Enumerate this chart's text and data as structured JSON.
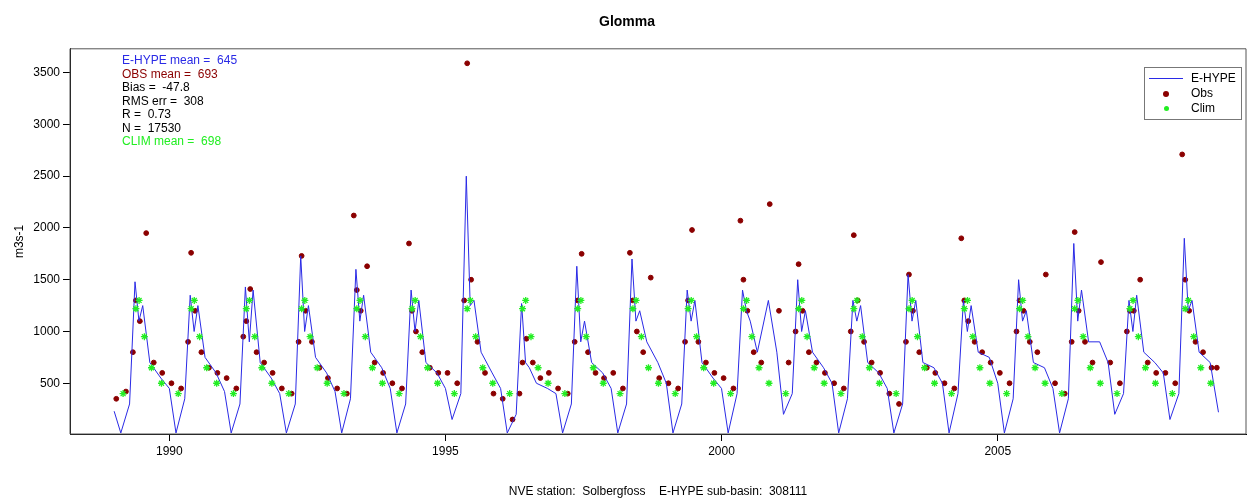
{
  "chart_data": {
    "type": "line",
    "title": "Glomma",
    "ylabel": "m3s-1",
    "xlim": [
      "1988-03-15",
      "2009-07-01"
    ],
    "xticks": [
      "1990",
      "1995",
      "2000",
      "2005"
    ],
    "ylim": [
      10,
      3730
    ],
    "yticks": [
      500,
      1000,
      1500,
      2000,
      2500,
      3000,
      3500
    ],
    "grid": false,
    "legend": "top right",
    "annotations": [
      "E-HYPE mean =  645",
      "OBS mean =  693",
      "Bias =  -47.8",
      "RMS err =  308",
      "R =  0.73",
      "N =  17530",
      "CLIM mean =  698",
      "NVE station:  Solbergfoss    E-HYPE sub-basin:  308111"
    ],
    "series": [
      {
        "name": "E-HYPE",
        "type": "line",
        "marker": "none",
        "color": "#2a2ae6",
        "x": [
          "1989-01-01",
          "1989-02-14",
          "1989-04-13",
          "1989-05-19",
          "1989-06-14",
          "1989-07-09",
          "1989-08-25",
          "1989-11-06",
          "1990-01-01",
          "1990-02-14",
          "1990-04-13",
          "1990-05-19",
          "1990-06-14",
          "1990-07-09",
          "1990-08-25",
          "1990-11-06",
          "1991-01-01",
          "1991-02-14",
          "1991-04-13",
          "1991-05-19",
          "1991-06-14",
          "1991-07-09",
          "1991-08-25",
          "1991-11-06",
          "1992-01-01",
          "1992-02-14",
          "1992-04-13",
          "1992-05-19",
          "1992-06-14",
          "1992-07-09",
          "1992-08-25",
          "1992-11-06",
          "1993-01-01",
          "1993-02-14",
          "1993-04-13",
          "1993-05-19",
          "1993-06-14",
          "1993-07-09",
          "1993-08-25",
          "1993-11-06",
          "1994-01-01",
          "1994-02-14",
          "1994-04-13",
          "1994-05-19",
          "1994-06-14",
          "1994-07-09",
          "1994-08-25",
          "1994-11-06",
          "1995-01-01",
          "1995-02-14",
          "1995-04-13",
          "1995-05-19",
          "1995-06-14",
          "1995-07-09",
          "1995-08-25",
          "1995-11-06",
          "1996-01-01",
          "1996-02-14",
          "1996-04-13",
          "1996-05-19",
          "1996-06-14",
          "1996-07-09",
          "1996-08-25",
          "1996-11-06",
          "1997-01-01",
          "1997-02-14",
          "1997-04-13",
          "1997-05-19",
          "1997-06-14",
          "1997-07-09",
          "1997-08-25",
          "1997-11-06",
          "1998-01-01",
          "1998-02-14",
          "1998-04-13",
          "1998-05-19",
          "1998-06-14",
          "1998-07-09",
          "1998-08-25",
          "1998-11-06",
          "1999-01-01",
          "1999-02-14",
          "1999-04-13",
          "1999-05-19",
          "1999-06-14",
          "1999-07-09",
          "1999-08-25",
          "1999-11-06",
          "2000-01-01",
          "2000-02-14",
          "2000-04-13",
          "2000-05-19",
          "2000-06-14",
          "2000-07-09",
          "2000-08-25",
          "2000-11-06",
          "2001-01-01",
          "2001-02-14",
          "2001-04-13",
          "2001-05-19",
          "2001-06-14",
          "2001-07-09",
          "2001-08-25",
          "2001-11-06",
          "2002-01-01",
          "2002-02-14",
          "2002-04-13",
          "2002-05-19",
          "2002-06-14",
          "2002-07-09",
          "2002-08-25",
          "2002-11-06",
          "2003-01-01",
          "2003-02-14",
          "2003-04-13",
          "2003-05-19",
          "2003-06-14",
          "2003-07-09",
          "2003-08-25",
          "2003-11-06",
          "2004-01-01",
          "2004-02-14",
          "2004-04-13",
          "2004-05-19",
          "2004-06-14",
          "2004-07-09",
          "2004-08-25",
          "2004-11-06",
          "2005-01-01",
          "2005-02-14",
          "2005-04-13",
          "2005-05-19",
          "2005-06-14",
          "2005-07-09",
          "2005-08-25",
          "2005-11-06",
          "2006-01-01",
          "2006-02-14",
          "2006-04-13",
          "2006-05-19",
          "2006-06-14",
          "2006-07-09",
          "2006-08-25",
          "2006-11-06",
          "2007-01-01",
          "2007-02-14",
          "2007-04-13",
          "2007-05-19",
          "2007-06-14",
          "2007-07-09",
          "2007-08-25",
          "2007-11-06",
          "2008-01-01",
          "2008-02-14",
          "2008-04-13",
          "2008-05-19",
          "2008-06-14",
          "2008-07-09",
          "2008-08-25",
          "2008-11-06",
          "2008-12-31"
        ],
        "values": [
          230,
          20,
          300,
          1480,
          1100,
          1250,
          700,
          550,
          450,
          20,
          350,
          1350,
          1000,
          1250,
          750,
          600,
          420,
          20,
          300,
          1430,
          900,
          1400,
          700,
          550,
          400,
          20,
          300,
          1730,
          1000,
          1250,
          750,
          600,
          420,
          20,
          350,
          1600,
          1100,
          1350,
          800,
          650,
          450,
          20,
          300,
          1400,
          1000,
          1300,
          700,
          600,
          450,
          150,
          400,
          2500,
          1250,
          1300,
          800,
          600,
          450,
          20,
          200,
          1270,
          700,
          650,
          500,
          450,
          400,
          20,
          300,
          1630,
          900,
          1100,
          700,
          600,
          450,
          20,
          300,
          1700,
          1100,
          1200,
          900,
          700,
          500,
          20,
          300,
          1400,
          1100,
          1300,
          700,
          550,
          450,
          20,
          400,
          1400,
          1200,
          1100,
          800,
          1300,
          800,
          200,
          400,
          1500,
          1000,
          1200,
          800,
          650,
          500,
          20,
          350,
          1300,
          1100,
          1250,
          700,
          600,
          450,
          20,
          300,
          1550,
          1100,
          1300,
          700,
          650,
          500,
          20,
          400,
          1300,
          1000,
          1250,
          800,
          750,
          500,
          20,
          350,
          1500,
          1100,
          1200,
          700,
          650,
          450,
          20,
          350,
          1850,
          1100,
          1400,
          900,
          900,
          700,
          200,
          400,
          1300,
          1000,
          1350,
          800,
          700,
          600,
          150,
          400,
          1900,
          1200,
          1300,
          800,
          700,
          220
        ]
      },
      {
        "name": "Obs",
        "type": "scatter",
        "marker": "circle",
        "color": "#8b0000",
        "x": [
          "1989-01-15",
          "1989-03-20",
          "1989-05-05",
          "1989-05-25",
          "1989-06-20",
          "1989-08-01",
          "1989-09-20",
          "1989-11-15",
          "1990-01-15",
          "1990-03-20",
          "1990-05-05",
          "1990-05-25",
          "1990-06-20",
          "1990-08-01",
          "1990-09-20",
          "1990-11-15",
          "1991-01-15",
          "1991-03-20",
          "1991-05-05",
          "1991-05-25",
          "1991-06-20",
          "1991-08-01",
          "1991-09-20",
          "1991-11-15",
          "1992-01-15",
          "1992-03-20",
          "1992-05-05",
          "1992-05-25",
          "1992-06-20",
          "1992-08-01",
          "1992-09-20",
          "1992-11-15",
          "1993-01-15",
          "1993-03-20",
          "1993-05-05",
          "1993-05-25",
          "1993-06-20",
          "1993-08-01",
          "1993-09-20",
          "1993-11-15",
          "1994-01-15",
          "1994-03-20",
          "1994-05-05",
          "1994-05-25",
          "1994-06-20",
          "1994-08-01",
          "1994-09-20",
          "1994-11-15",
          "1995-01-15",
          "1995-03-20",
          "1995-05-05",
          "1995-05-25",
          "1995-06-20",
          "1995-08-01",
          "1995-09-20",
          "1995-11-15",
          "1996-01-15",
          "1996-03-20",
          "1996-05-05",
          "1996-05-25",
          "1996-06-20",
          "1996-08-01",
          "1996-09-20",
          "1996-11-15",
          "1997-01-15",
          "1997-03-20",
          "1997-05-05",
          "1997-05-25",
          "1997-06-20",
          "1997-08-01",
          "1997-09-20",
          "1997-11-15",
          "1998-01-15",
          "1998-03-20",
          "1998-05-05",
          "1998-05-25",
          "1998-06-20",
          "1998-08-01",
          "1998-09-20",
          "1998-11-15",
          "1999-01-15",
          "1999-03-20",
          "1999-05-05",
          "1999-05-25",
          "1999-06-20",
          "1999-08-01",
          "1999-09-20",
          "1999-11-15",
          "2000-01-15",
          "2000-03-20",
          "2000-05-05",
          "2000-05-25",
          "2000-06-20",
          "2000-08-01",
          "2000-09-20",
          "2000-11-15",
          "2001-01-15",
          "2001-03-20",
          "2001-05-05",
          "2001-05-25",
          "2001-06-20",
          "2001-08-01",
          "2001-09-20",
          "2001-11-15",
          "2002-01-15",
          "2002-03-20",
          "2002-05-05",
          "2002-05-25",
          "2002-06-20",
          "2002-08-01",
          "2002-09-20",
          "2002-11-15",
          "2003-01-15",
          "2003-03-20",
          "2003-05-05",
          "2003-05-25",
          "2003-06-20",
          "2003-08-01",
          "2003-09-20",
          "2003-11-15",
          "2004-01-15",
          "2004-03-20",
          "2004-05-05",
          "2004-05-25",
          "2004-06-20",
          "2004-08-01",
          "2004-09-20",
          "2004-11-15",
          "2005-01-15",
          "2005-03-20",
          "2005-05-05",
          "2005-05-25",
          "2005-06-20",
          "2005-08-01",
          "2005-09-20",
          "2005-11-15",
          "2006-01-15",
          "2006-03-20",
          "2006-05-05",
          "2006-05-25",
          "2006-06-20",
          "2006-08-01",
          "2006-09-20",
          "2006-11-15",
          "2007-01-15",
          "2007-03-20",
          "2007-05-05",
          "2007-05-25",
          "2007-06-20",
          "2007-08-01",
          "2007-09-20",
          "2007-11-15",
          "2008-01-15",
          "2008-03-20",
          "2008-05-05",
          "2008-05-25",
          "2008-06-20",
          "2008-08-01",
          "2008-09-20",
          "2008-11-15",
          "2008-12-20"
        ],
        "values": [
          350,
          420,
          800,
          1300,
          1100,
          1950,
          700,
          600,
          500,
          450,
          900,
          1760,
          1200,
          800,
          650,
          600,
          550,
          450,
          950,
          1100,
          1410,
          800,
          700,
          600,
          450,
          400,
          900,
          1730,
          1200,
          900,
          650,
          550,
          450,
          400,
          2120,
          1400,
          1200,
          1630,
          700,
          600,
          500,
          450,
          1850,
          1200,
          1000,
          800,
          650,
          600,
          600,
          500,
          1300,
          3590,
          1500,
          900,
          600,
          400,
          350,
          150,
          400,
          700,
          930,
          700,
          550,
          600,
          450,
          400,
          900,
          1300,
          1750,
          800,
          600,
          550,
          600,
          450,
          1760,
          1300,
          1000,
          800,
          1520,
          550,
          500,
          450,
          900,
          1300,
          1980,
          900,
          700,
          600,
          550,
          450,
          2070,
          1500,
          1200,
          800,
          700,
          2230,
          1200,
          700,
          1000,
          1650,
          1200,
          800,
          700,
          600,
          500,
          450,
          1000,
          1930,
          1300,
          900,
          700,
          600,
          400,
          300,
          900,
          1550,
          1200,
          800,
          650,
          600,
          500,
          450,
          1900,
          1300,
          1100,
          900,
          800,
          700,
          600,
          500,
          1000,
          1300,
          1200,
          900,
          800,
          1550,
          500,
          400,
          900,
          1960,
          1200,
          900,
          700,
          1670,
          700,
          500,
          1000,
          1200,
          1200,
          1500,
          700,
          600,
          600,
          500,
          2710,
          1500,
          1200,
          900,
          800,
          650,
          650
        ]
      },
      {
        "name": "Clim",
        "type": "scatter",
        "marker": "cross",
        "color": "#22ee22",
        "x": [
          "1989-03-01",
          "1989-05-25",
          "1989-06-15",
          "1989-07-20",
          "1989-09-05",
          "1989-11-10",
          "1990-03-01",
          "1990-05-25",
          "1990-06-15",
          "1990-07-20",
          "1990-09-05",
          "1990-11-10",
          "1991-03-01",
          "1991-05-25",
          "1991-06-15",
          "1991-07-20",
          "1991-09-05",
          "1991-11-10",
          "1992-03-01",
          "1992-05-25",
          "1992-06-15",
          "1992-07-20",
          "1992-09-05",
          "1992-11-10",
          "1993-03-01",
          "1993-05-25",
          "1993-06-15",
          "1993-07-20",
          "1993-09-05",
          "1993-11-10",
          "1994-03-01",
          "1994-05-25",
          "1994-06-15",
          "1994-07-20",
          "1994-09-05",
          "1994-11-10",
          "1995-03-01",
          "1995-05-25",
          "1995-06-15",
          "1995-07-20",
          "1995-09-05",
          "1995-11-10",
          "1996-03-01",
          "1996-05-25",
          "1996-06-15",
          "1996-07-20",
          "1996-09-05",
          "1996-11-10",
          "1997-03-01",
          "1997-05-25",
          "1997-06-15",
          "1997-07-20",
          "1997-09-05",
          "1997-11-10",
          "1998-03-01",
          "1998-05-25",
          "1998-06-15",
          "1998-07-20",
          "1998-09-05",
          "1998-11-10",
          "1999-03-01",
          "1999-05-25",
          "1999-06-15",
          "1999-07-20",
          "1999-09-05",
          "1999-11-10",
          "2000-03-01",
          "2000-05-25",
          "2000-06-15",
          "2000-07-20",
          "2000-09-05",
          "2000-11-10",
          "2001-03-01",
          "2001-05-25",
          "2001-06-15",
          "2001-07-20",
          "2001-09-05",
          "2001-11-10",
          "2002-03-01",
          "2002-05-25",
          "2002-06-15",
          "2002-07-20",
          "2002-09-05",
          "2002-11-10",
          "2003-03-01",
          "2003-05-25",
          "2003-06-15",
          "2003-07-20",
          "2003-09-05",
          "2003-11-10",
          "2004-03-01",
          "2004-05-25",
          "2004-06-15",
          "2004-07-20",
          "2004-09-05",
          "2004-11-10",
          "2005-03-01",
          "2005-05-25",
          "2005-06-15",
          "2005-07-20",
          "2005-09-05",
          "2005-11-10",
          "2006-03-01",
          "2006-05-25",
          "2006-06-15",
          "2006-07-20",
          "2006-09-05",
          "2006-11-10",
          "2007-03-01",
          "2007-05-25",
          "2007-06-15",
          "2007-07-20",
          "2007-09-05",
          "2007-11-10",
          "2008-03-01",
          "2008-05-25",
          "2008-06-15",
          "2008-07-20",
          "2008-09-05",
          "2008-11-10"
        ],
        "values": [
          400,
          1220,
          1300,
          950,
          650,
          500,
          400,
          1220,
          1300,
          950,
          650,
          500,
          400,
          1220,
          1300,
          950,
          650,
          500,
          400,
          1220,
          1300,
          950,
          650,
          500,
          400,
          1220,
          1300,
          950,
          650,
          500,
          400,
          1220,
          1300,
          950,
          650,
          500,
          400,
          1220,
          1300,
          950,
          650,
          500,
          400,
          1220,
          1300,
          950,
          650,
          500,
          400,
          1220,
          1300,
          950,
          650,
          500,
          400,
          1220,
          1300,
          950,
          650,
          500,
          400,
          1220,
          1300,
          950,
          650,
          500,
          400,
          1220,
          1300,
          950,
          650,
          500,
          400,
          1220,
          1300,
          950,
          650,
          500,
          400,
          1220,
          1300,
          950,
          650,
          500,
          400,
          1220,
          1300,
          950,
          650,
          500,
          400,
          1220,
          1300,
          950,
          650,
          500,
          400,
          1220,
          1300,
          950,
          650,
          500,
          400,
          1220,
          1300,
          950,
          650,
          500,
          400,
          1220,
          1300,
          950,
          650,
          500,
          400,
          1220,
          1300,
          950,
          650,
          500
        ]
      }
    ]
  }
}
